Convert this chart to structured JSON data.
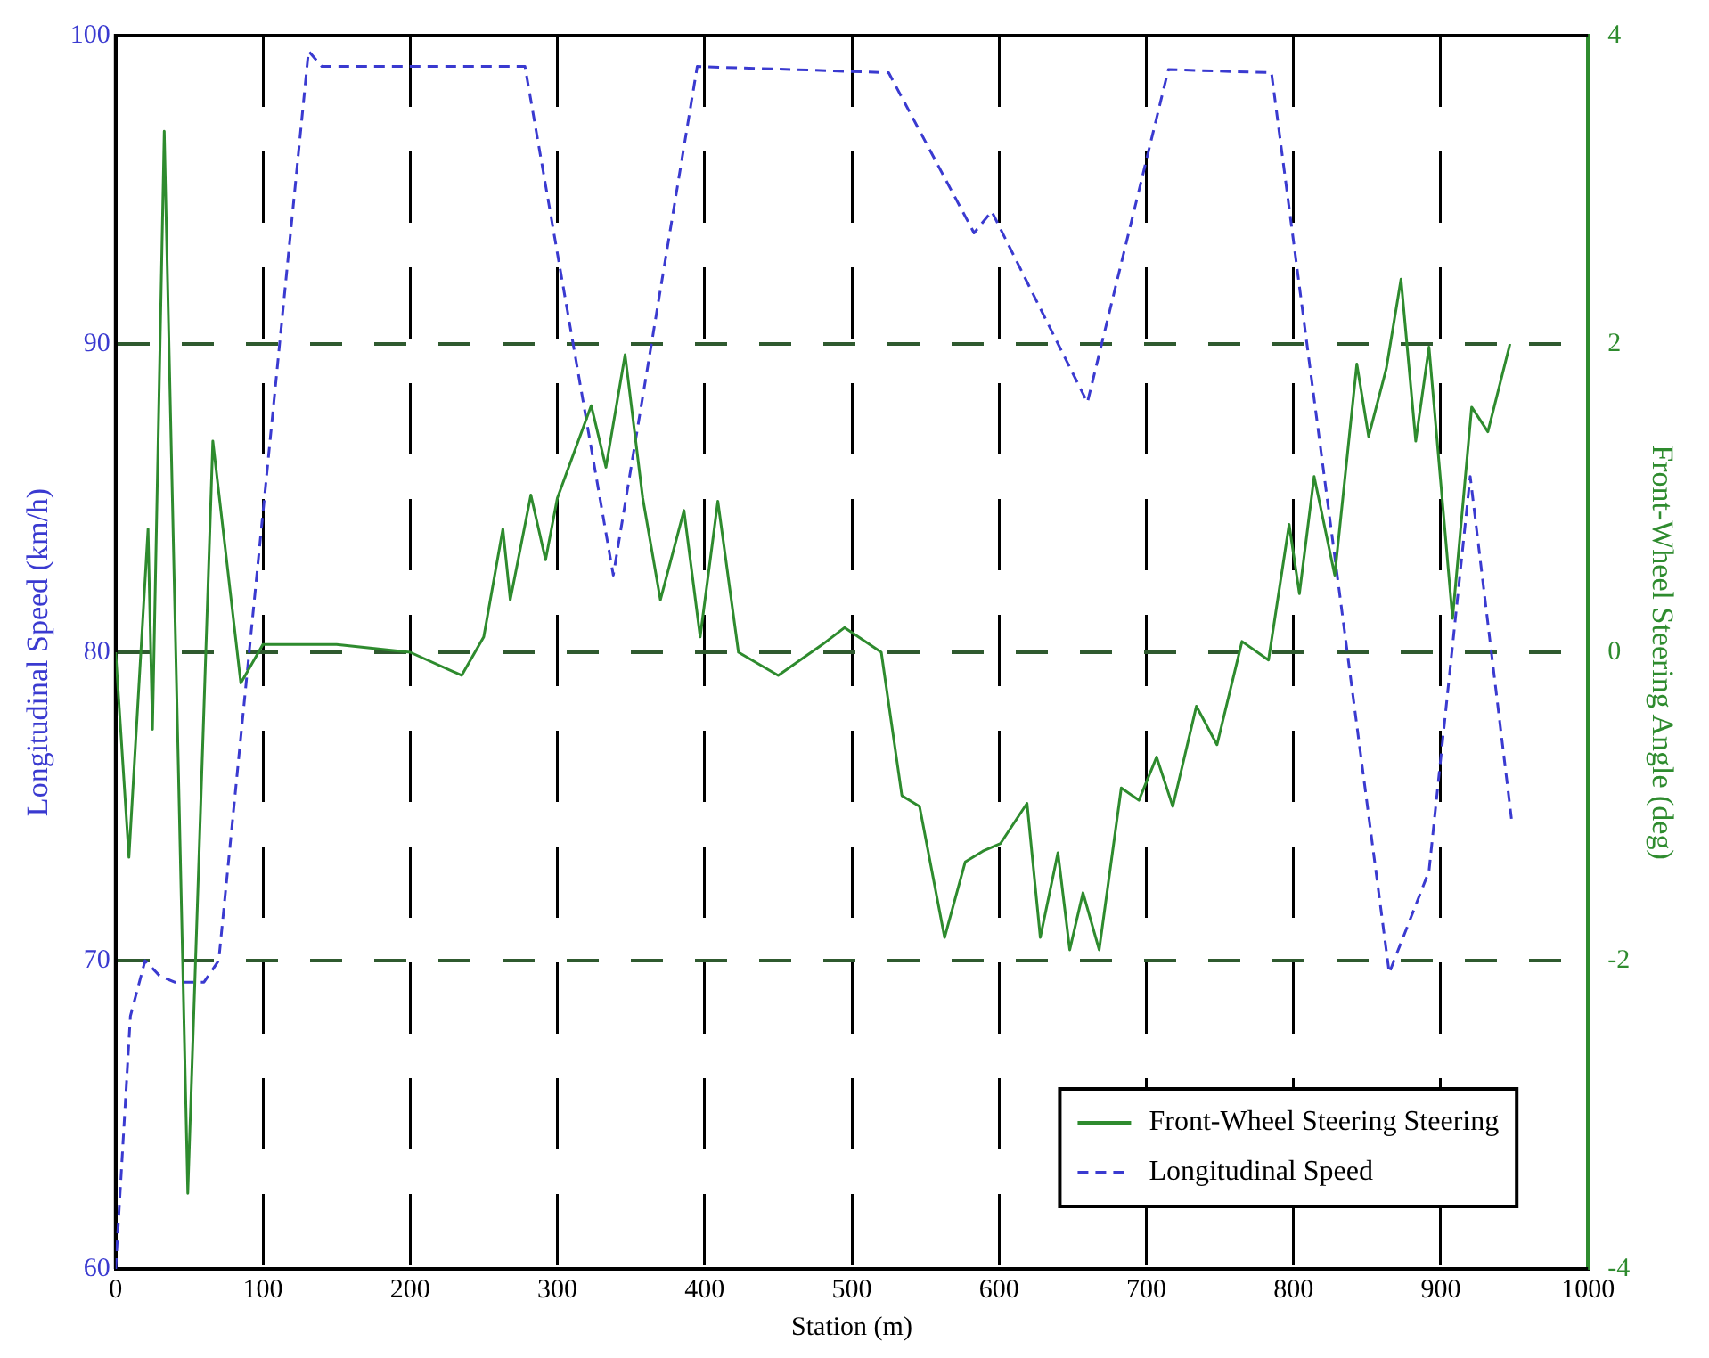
{
  "chart_data": {
    "type": "line",
    "xlabel": "Station (m)",
    "ylabel": "Longitudinal Speed (km/h)",
    "y2label": "Front-Wheel Steering Angle (deg)",
    "xlim": [
      0,
      1000
    ],
    "xticks": [
      0,
      100,
      200,
      300,
      400,
      500,
      600,
      700,
      800,
      900,
      1000
    ],
    "ylim": [
      60,
      100
    ],
    "yticks": [
      60,
      70,
      80,
      90,
      100
    ],
    "y2lim": [
      -4,
      4
    ],
    "y2ticks": [
      -4,
      -2,
      0,
      2,
      4
    ],
    "grid": true,
    "legend": "bottom right",
    "marker": "none",
    "series": [
      {
        "name": "Front-Wheel Steering Steering",
        "color": "#2e8b2e",
        "axis": "y2",
        "line_style": "solid",
        "x": [
          0,
          9,
          22,
          25,
          33,
          49,
          66,
          85,
          100,
          150,
          200,
          235,
          250,
          263,
          268,
          282,
          292,
          300,
          323,
          333,
          346,
          358,
          370,
          386,
          397,
          409,
          423,
          450,
          480,
          495,
          520,
          534,
          546,
          563,
          577,
          589,
          601,
          619,
          628,
          640,
          648,
          657,
          668,
          683,
          695,
          707,
          718,
          734,
          748,
          765,
          783,
          797,
          804,
          814,
          828,
          843,
          851,
          863,
          873,
          883,
          892,
          908,
          921,
          932,
          947
        ],
        "values": [
          0,
          -1.33,
          0.8,
          -0.5,
          3.38,
          -3.51,
          1.37,
          -0.2,
          0.05,
          0.05,
          0,
          -0.15,
          0.1,
          0.8,
          0.34,
          1.02,
          0.6,
          1.0,
          1.6,
          1.2,
          1.93,
          1.0,
          0.34,
          0.92,
          0.1,
          0.98,
          0,
          -0.15,
          0.05,
          0.16,
          0,
          -0.93,
          -1.0,
          -1.85,
          -1.36,
          -1.29,
          -1.24,
          -0.98,
          -1.85,
          -1.3,
          -1.93,
          -1.56,
          -1.93,
          -0.88,
          -0.96,
          -0.68,
          -1.0,
          -0.35,
          -0.6,
          0.07,
          -0.05,
          0.83,
          0.38,
          1.14,
          0.5,
          1.87,
          1.4,
          1.84,
          2.42,
          1.37,
          1.98,
          0.22,
          1.59,
          1.43,
          2.0
        ]
      },
      {
        "name": "Longitudinal Speed",
        "color": "#3a3ad0",
        "axis": "y",
        "line_style": "dashed",
        "x": [
          0,
          10,
          20,
          30,
          40,
          60,
          70,
          131,
          140,
          278,
          338,
          395,
          525,
          583,
          595,
          660,
          715,
          785,
          865,
          892,
          920,
          948
        ],
        "values": [
          60,
          68.2,
          70,
          69.5,
          69.3,
          69.3,
          70,
          99.5,
          99,
          99,
          82.5,
          99,
          98.8,
          93.6,
          94.3,
          88.1,
          98.9,
          98.8,
          69.6,
          72.9,
          85.7,
          74.6
        ]
      }
    ]
  }
}
